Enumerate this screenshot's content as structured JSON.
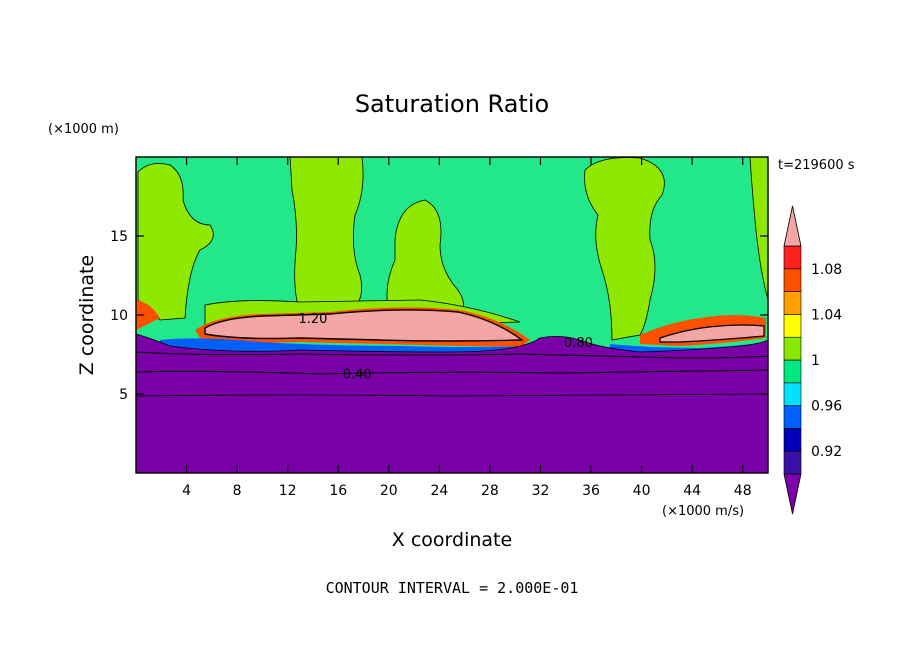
{
  "chart_data": {
    "type": "heatmap",
    "title": "Saturation Ratio",
    "xlabel": "X coordinate",
    "ylabel": "Z coordinate",
    "x_unit": "(×1000 m/s)",
    "y_unit": "(×1000 m)",
    "time_label": "t=219600 s",
    "footer": "CONTOUR INTERVAL = 2.000E-01",
    "xlim": [
      0,
      50
    ],
    "ylim": [
      0,
      20
    ],
    "x_ticks": [
      4,
      8,
      12,
      16,
      20,
      24,
      28,
      32,
      36,
      40,
      44,
      48
    ],
    "y_ticks": [
      5,
      10,
      15
    ],
    "contour_interval": 0.2,
    "contour_labels": [
      {
        "text": "1.20",
        "x": 14,
        "z": 9.8
      },
      {
        "text": "0.80",
        "x": 35,
        "z": 8.3
      },
      {
        "text": "0.40",
        "x": 17.5,
        "z": 6.3
      }
    ],
    "colorbar": {
      "levels": [
        0.9,
        0.92,
        0.94,
        0.96,
        0.98,
        1.0,
        1.02,
        1.04,
        1.06,
        1.08,
        1.1
      ],
      "tick_labels": [
        "0.92",
        "0.96",
        "1",
        "1.04",
        "1.08"
      ],
      "colors": [
        "#7b00a8",
        "#3a10a8",
        "#0000b8",
        "#0060ff",
        "#00e0ff",
        "#00e880",
        "#88e800",
        "#ffff00",
        "#ffa000",
        "#ff5000",
        "#ff2020",
        "#f4a6a6"
      ]
    }
  },
  "colors": {
    "subsaturated": "#7a00a8",
    "near_saturation": "#22e88a",
    "light_green": "#8ee800",
    "supersaturated": "#f4a6a6"
  }
}
